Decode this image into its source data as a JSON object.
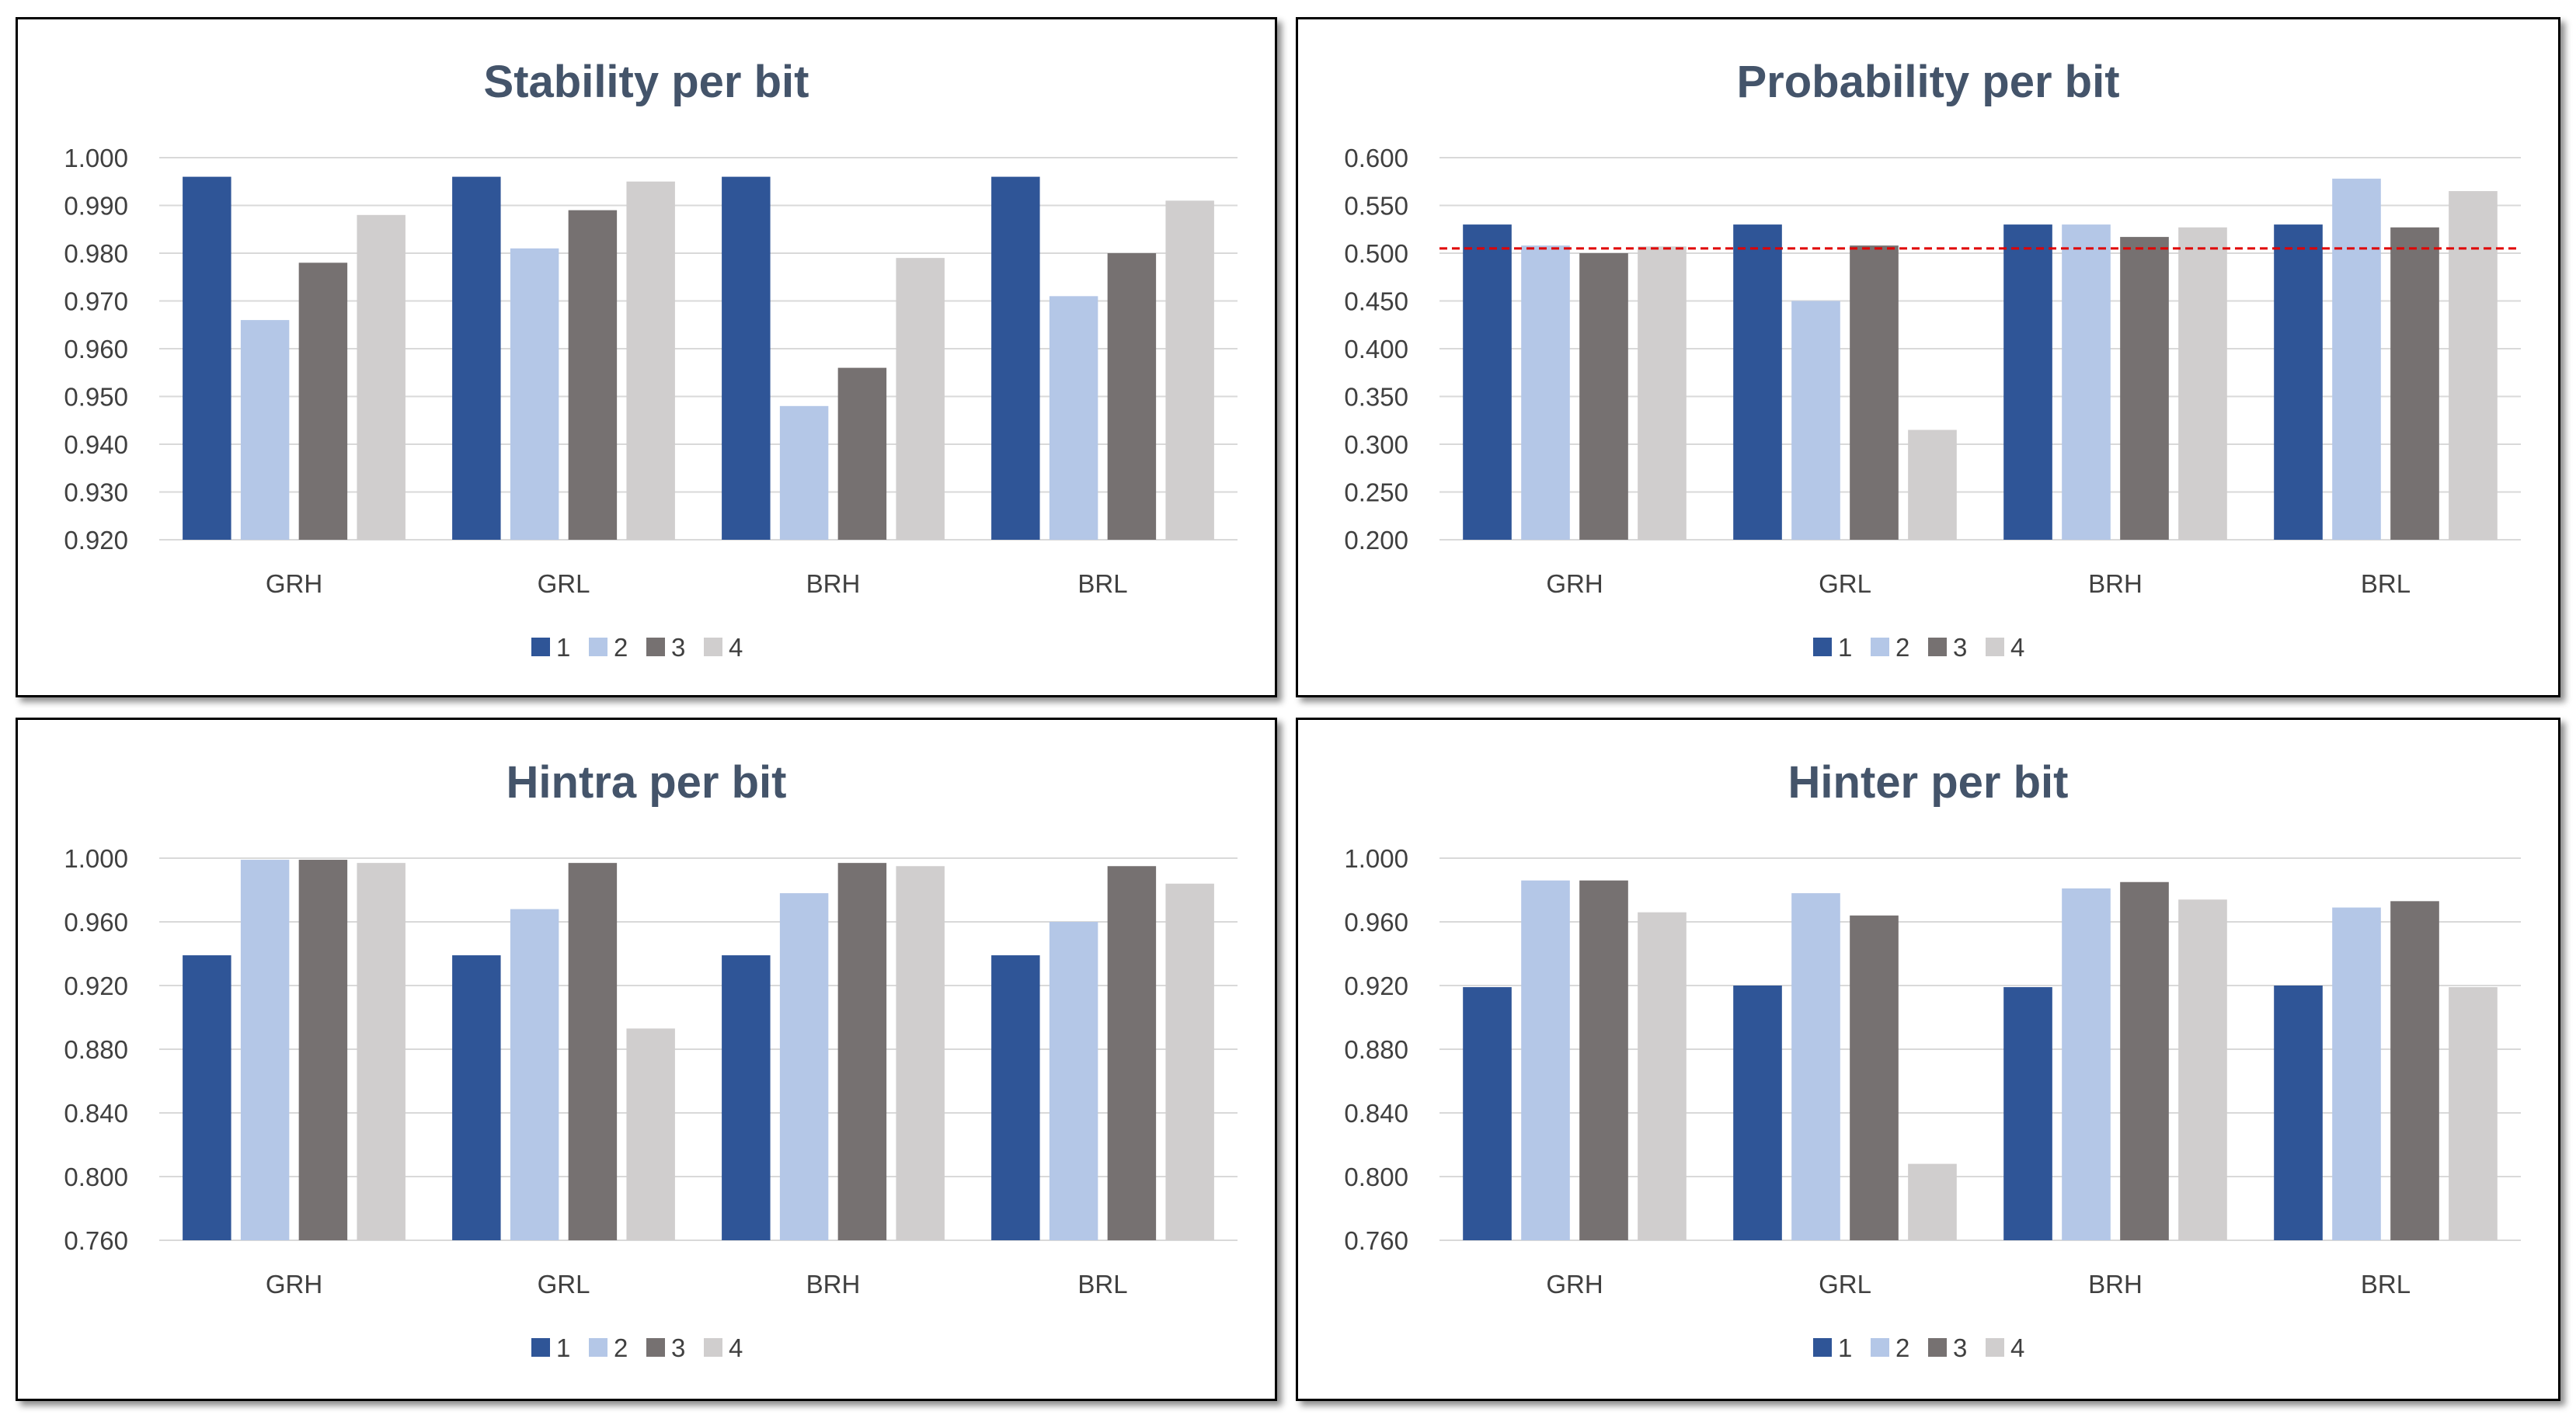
{
  "chart_data": [
    {
      "type": "bar",
      "title": "Stability per bit",
      "categories": [
        "GRH",
        "GRL",
        "BRH",
        "BRL"
      ],
      "ylim": [
        0.92,
        1.0
      ],
      "yticks": [
        "1.000",
        "0.990",
        "0.980",
        "0.970",
        "0.960",
        "0.950",
        "0.940",
        "0.930",
        "0.920"
      ],
      "grid": true,
      "legend_position": "bottom",
      "series": [
        {
          "name": "1",
          "color": "#2f5597",
          "values": [
            0.996,
            0.996,
            0.996,
            0.996
          ]
        },
        {
          "name": "2",
          "color": "#b4c7e7",
          "values": [
            0.966,
            0.981,
            0.948,
            0.971
          ]
        },
        {
          "name": "3",
          "color": "#767171",
          "values": [
            0.978,
            0.989,
            0.956,
            0.98
          ]
        },
        {
          "name": "4",
          "color": "#d0cece",
          "values": [
            0.988,
            0.995,
            0.979,
            0.991
          ]
        }
      ]
    },
    {
      "type": "bar",
      "title": "Probability  per bit",
      "categories": [
        "GRH",
        "GRL",
        "BRH",
        "BRL"
      ],
      "ylim": [
        0.2,
        0.6
      ],
      "yticks": [
        "0.600",
        "0.550",
        "0.500",
        "0.450",
        "0.400",
        "0.350",
        "0.300",
        "0.250",
        "0.200"
      ],
      "grid": true,
      "legend_position": "bottom",
      "reference_line": {
        "value": 0.505,
        "color": "#e00000",
        "style": "dashed"
      },
      "series": [
        {
          "name": "1",
          "color": "#2f5597",
          "values": [
            0.53,
            0.53,
            0.53,
            0.53
          ]
        },
        {
          "name": "2",
          "color": "#b4c7e7",
          "values": [
            0.508,
            0.45,
            0.53,
            0.578
          ]
        },
        {
          "name": "3",
          "color": "#767171",
          "values": [
            0.5,
            0.508,
            0.517,
            0.527
          ]
        },
        {
          "name": "4",
          "color": "#d0cece",
          "values": [
            0.507,
            0.315,
            0.527,
            0.565
          ]
        }
      ]
    },
    {
      "type": "bar",
      "title": "Hintra per bit",
      "categories": [
        "GRH",
        "GRL",
        "BRH",
        "BRL"
      ],
      "ylim": [
        0.76,
        1.0
      ],
      "yticks": [
        "1.000",
        "0.960",
        "0.920",
        "0.880",
        "0.840",
        "0.800",
        "0.760"
      ],
      "grid": true,
      "legend_position": "bottom",
      "series": [
        {
          "name": "1",
          "color": "#2f5597",
          "values": [
            0.939,
            0.939,
            0.939,
            0.939
          ]
        },
        {
          "name": "2",
          "color": "#b4c7e7",
          "values": [
            0.999,
            0.968,
            0.978,
            0.96
          ]
        },
        {
          "name": "3",
          "color": "#767171",
          "values": [
            0.999,
            0.997,
            0.997,
            0.995
          ]
        },
        {
          "name": "4",
          "color": "#d0cece",
          "values": [
            0.997,
            0.893,
            0.995,
            0.984
          ]
        }
      ]
    },
    {
      "type": "bar",
      "title": "Hinter per bit",
      "categories": [
        "GRH",
        "GRL",
        "BRH",
        "BRL"
      ],
      "ylim": [
        0.76,
        1.0
      ],
      "yticks": [
        "1.000",
        "0.960",
        "0.920",
        "0.880",
        "0.840",
        "0.800",
        "0.760"
      ],
      "grid": true,
      "legend_position": "bottom",
      "series": [
        {
          "name": "1",
          "color": "#2f5597",
          "values": [
            0.919,
            0.92,
            0.919,
            0.92
          ]
        },
        {
          "name": "2",
          "color": "#b4c7e7",
          "values": [
            0.986,
            0.978,
            0.981,
            0.969
          ]
        },
        {
          "name": "3",
          "color": "#767171",
          "values": [
            0.986,
            0.964,
            0.985,
            0.973
          ]
        },
        {
          "name": "4",
          "color": "#d0cece",
          "values": [
            0.966,
            0.808,
            0.974,
            0.919
          ]
        }
      ]
    }
  ]
}
